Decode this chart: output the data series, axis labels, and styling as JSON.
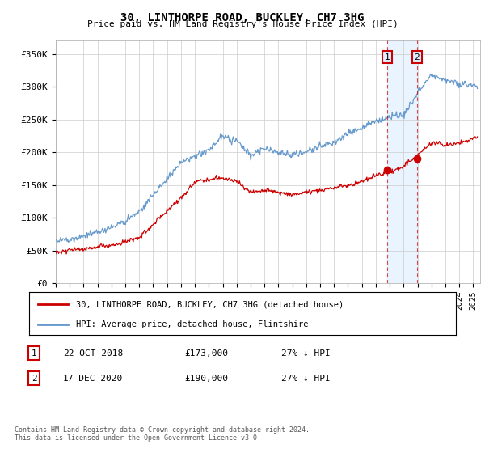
{
  "title": "30, LINTHORPE ROAD, BUCKLEY, CH7 3HG",
  "subtitle": "Price paid vs. HM Land Registry's House Price Index (HPI)",
  "ylabel_ticks": [
    "£0",
    "£50K",
    "£100K",
    "£150K",
    "£200K",
    "£250K",
    "£300K",
    "£350K"
  ],
  "ylim": [
    0,
    370000
  ],
  "xlim_start": 1995.0,
  "xlim_end": 2025.5,
  "hpi_color": "#6699cc",
  "price_color": "#cc0000",
  "shade_color": "#ddeeff",
  "marker1_date": 2018.81,
  "marker2_date": 2020.96,
  "marker1_price": 173000,
  "marker2_price": 190000,
  "marker1_label": "1",
  "marker2_label": "2",
  "legend_line1": "30, LINTHORPE ROAD, BUCKLEY, CH7 3HG (detached house)",
  "legend_line2": "HPI: Average price, detached house, Flintshire",
  "footnote": "Contains HM Land Registry data © Crown copyright and database right 2024.\nThis data is licensed under the Open Government Licence v3.0.",
  "background_color": "#ffffff",
  "grid_color": "#cccccc",
  "hpi_keypoints": [
    [
      1995,
      65000
    ],
    [
      1996,
      68000
    ],
    [
      1997,
      72000
    ],
    [
      1998,
      78000
    ],
    [
      1999,
      85000
    ],
    [
      2000,
      95000
    ],
    [
      2001,
      110000
    ],
    [
      2002,
      135000
    ],
    [
      2003,
      160000
    ],
    [
      2004,
      185000
    ],
    [
      2005,
      192000
    ],
    [
      2006,
      205000
    ],
    [
      2007,
      225000
    ],
    [
      2008,
      218000
    ],
    [
      2009,
      195000
    ],
    [
      2010,
      205000
    ],
    [
      2011,
      200000
    ],
    [
      2012,
      195000
    ],
    [
      2013,
      200000
    ],
    [
      2014,
      210000
    ],
    [
      2015,
      215000
    ],
    [
      2016,
      228000
    ],
    [
      2017,
      238000
    ],
    [
      2018,
      248000
    ],
    [
      2019,
      255000
    ],
    [
      2020,
      258000
    ],
    [
      2021,
      290000
    ],
    [
      2022,
      320000
    ],
    [
      2023,
      310000
    ],
    [
      2024,
      305000
    ],
    [
      2025.3,
      300000
    ]
  ],
  "price_keypoints": [
    [
      1995,
      48000
    ],
    [
      1996,
      50000
    ],
    [
      1997,
      52000
    ],
    [
      1998,
      55000
    ],
    [
      1999,
      58000
    ],
    [
      2000,
      62000
    ],
    [
      2001,
      70000
    ],
    [
      2002,
      90000
    ],
    [
      2003,
      110000
    ],
    [
      2004,
      130000
    ],
    [
      2005,
      155000
    ],
    [
      2006,
      158000
    ],
    [
      2007,
      162000
    ],
    [
      2008,
      155000
    ],
    [
      2009,
      138000
    ],
    [
      2010,
      142000
    ],
    [
      2011,
      138000
    ],
    [
      2012,
      135000
    ],
    [
      2013,
      138000
    ],
    [
      2014,
      142000
    ],
    [
      2015,
      145000
    ],
    [
      2016,
      150000
    ],
    [
      2017,
      155000
    ],
    [
      2018,
      165000
    ],
    [
      2019,
      170000
    ],
    [
      2020,
      178000
    ],
    [
      2021,
      195000
    ],
    [
      2022,
      215000
    ],
    [
      2023,
      210000
    ],
    [
      2024,
      215000
    ],
    [
      2025.3,
      222000
    ]
  ]
}
